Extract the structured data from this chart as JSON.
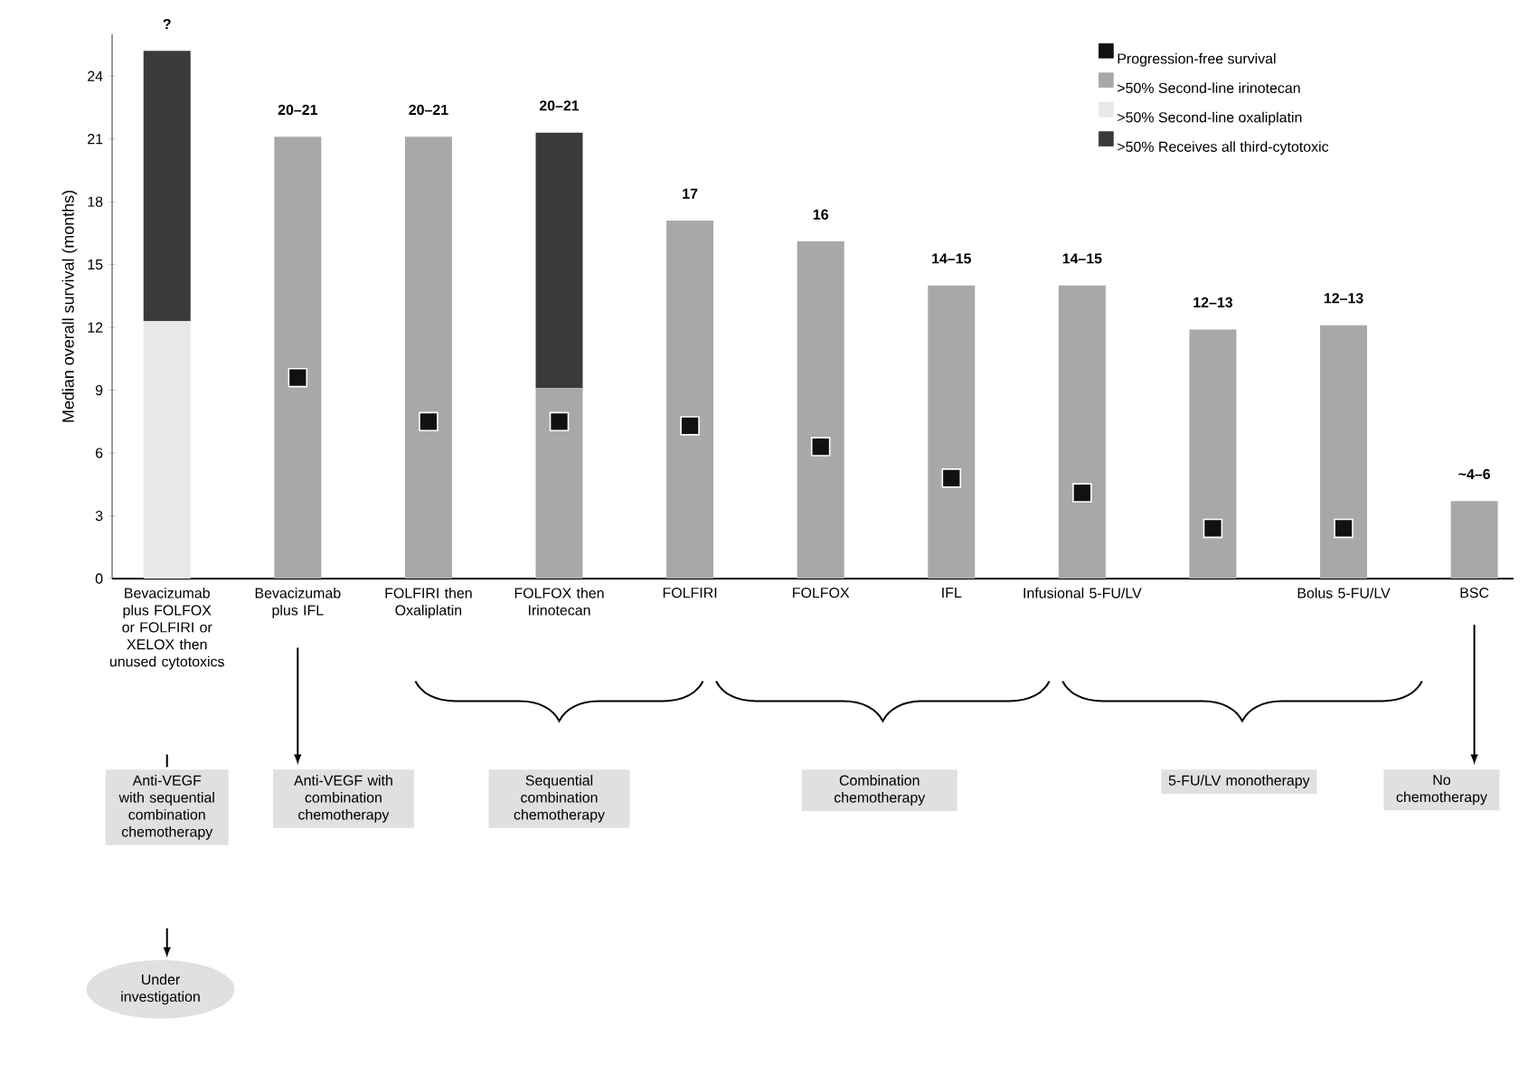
{
  "chart_data": {
    "type": "bar",
    "stacked": true,
    "ylabel": "Median overall survival (months)",
    "categories": [
      "Bevacizumab plus FOLFOX or FOLFIRI or XELOX then unused cytotoxics",
      "Bevacizumab plus IFL",
      "FOLFIRI then Oxaliplatin",
      "FOLFOX then Irinotecan",
      "FOLFIRI",
      "FOLFOX",
      "IFL",
      "Infusional 5-FU/LV",
      null,
      "Bolus 5-FU/LV",
      "BSC"
    ],
    "series": [
      {
        "name": "Progression-free survival",
        "type": "scatter",
        "marker": "square",
        "color": "#111111",
        "values": [
          null,
          9.6,
          7.5,
          7.5,
          7.3,
          6.3,
          4.8,
          4.1,
          2.4,
          2.4,
          null
        ]
      },
      {
        "name": ">50% Second-line irinotecan",
        "color": "#a8a8a8",
        "values": [
          null,
          21.1,
          21.1,
          9.1,
          17.1,
          16.1,
          14.0,
          14.0,
          11.9,
          12.1,
          3.7
        ]
      },
      {
        "name": ">50% Second-line oxaliplatin",
        "color": "#e8e8e8",
        "values": [
          12.3,
          null,
          null,
          null,
          null,
          null,
          null,
          null,
          null,
          null,
          null
        ]
      },
      {
        "name": ">50% Receives all third-cytotoxic",
        "color": "#3a3a3a",
        "values": [
          12.9,
          null,
          null,
          12.2,
          null,
          null,
          null,
          null,
          null,
          null,
          null
        ]
      }
    ],
    "totals": [
      "?",
      "20–21",
      "20–21",
      "20–21",
      "17",
      "16",
      "14–15",
      "14–15",
      "12–13",
      "12–13",
      "~4–6"
    ],
    "ylim": [
      0,
      26
    ],
    "yticks": [
      0,
      3,
      6,
      9,
      12,
      15,
      18,
      21,
      24
    ],
    "legend": "top right",
    "annotations": [
      "Anti-VEGF with sequential combination chemotherapy",
      "Anti-VEGF with combination chemotherapy",
      "Sequential combination chemotherapy",
      "Combination chemotherapy",
      "5-FU/LV monotherapy",
      "No chemotherapy",
      "Under investigation"
    ]
  }
}
